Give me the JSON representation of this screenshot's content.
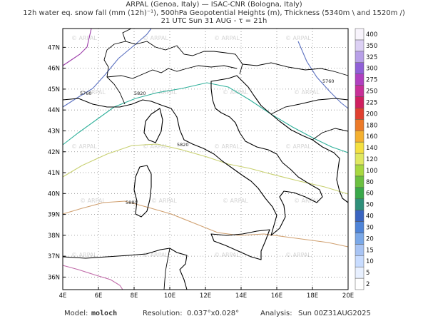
{
  "header": {
    "line1": "ARPAL (Genoa, Italy)  —  ISAC-CNR (Bologna, Italy)",
    "line2": "12h water eq. snow fall (mm (12h)⁻¹), 500hPa Geopotential Heights (m), Thickness (5340m \\ and 1520m /)",
    "line3": "21 UTC Sun 31 AUG  -  τ = 21h"
  },
  "map": {
    "xlim": [
      4,
      20
    ],
    "ylim": [
      35.4,
      47.9
    ],
    "xticks": [
      {
        "value": 4,
        "label": "4E"
      },
      {
        "value": 6,
        "label": "6E"
      },
      {
        "value": 8,
        "label": "8E"
      },
      {
        "value": 10,
        "label": "10E"
      },
      {
        "value": 12,
        "label": "12E"
      },
      {
        "value": 14,
        "label": "14E"
      },
      {
        "value": 16,
        "label": "16E"
      },
      {
        "value": 18,
        "label": "18E"
      },
      {
        "value": 20,
        "label": "20E"
      }
    ],
    "yticks": [
      {
        "value": 36,
        "label": "36N"
      },
      {
        "value": 37,
        "label": "37N"
      },
      {
        "value": 38,
        "label": "38N"
      },
      {
        "value": 39,
        "label": "39N"
      },
      {
        "value": 40,
        "label": "40N"
      },
      {
        "value": 41,
        "label": "41N"
      },
      {
        "value": 42,
        "label": "42N"
      },
      {
        "value": 43,
        "label": "43N"
      },
      {
        "value": 44,
        "label": "44N"
      },
      {
        "value": 45,
        "label": "45N"
      },
      {
        "value": 46,
        "label": "46N"
      },
      {
        "value": 47,
        "label": "47N"
      }
    ],
    "watermark": "© ARPAL",
    "contour_labels": [
      "5760",
      "5820",
      "5760",
      "5880",
      "5820"
    ]
  },
  "colorbar": {
    "levels": [
      2,
      5,
      10,
      15,
      20,
      30,
      40,
      50,
      60,
      80,
      100,
      120,
      140,
      160,
      180,
      200,
      225,
      250,
      275,
      300,
      325,
      350,
      400
    ],
    "colors": [
      "#ffffff",
      "#e8f0ff",
      "#c8dcff",
      "#a8c4f4",
      "#7aa8e8",
      "#4f84d8",
      "#3a64c0",
      "#2f8f7a",
      "#3aa84a",
      "#6cc040",
      "#a8d840",
      "#e0e860",
      "#f4e040",
      "#f4b030",
      "#ec7a28",
      "#e04030",
      "#d02060",
      "#c83098",
      "#b040c0",
      "#9060d8",
      "#b8a0e8",
      "#dcd0f4",
      "#f8f4fc"
    ]
  },
  "footer": {
    "model_label": "Model:",
    "model": "moloch",
    "resolution_label": "Resolution:",
    "resolution": "0.037°x0.028°",
    "analysis_label": "Analysis:",
    "analysis": "Sun 00Z31AUG2025"
  }
}
